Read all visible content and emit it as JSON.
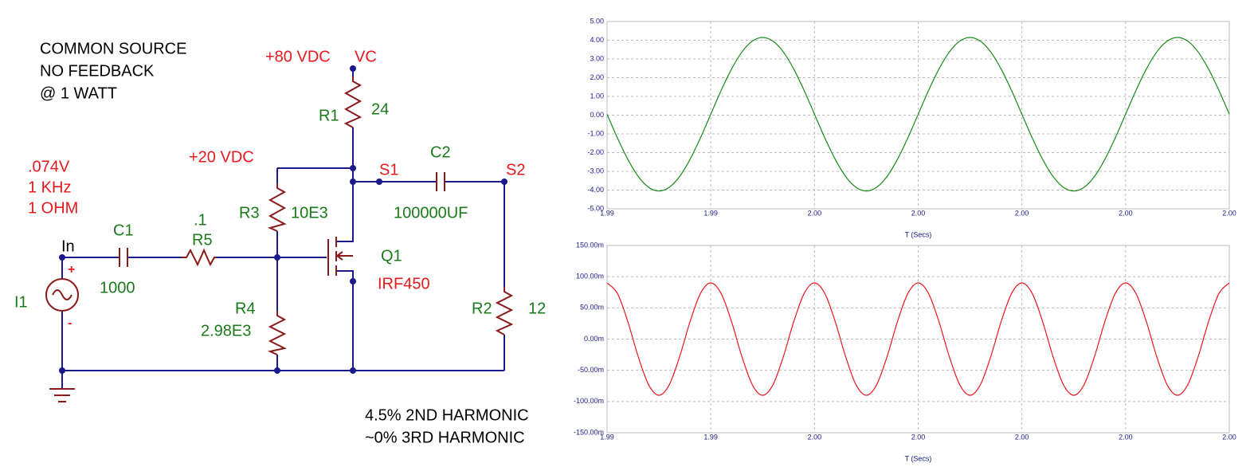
{
  "circuit": {
    "labels": [
      "COMMON SOURCE",
      "NO FEEDBACK",
      "@ 1 WATT",
      "+80 VDC",
      "VC",
      "R1",
      "24",
      "+20 VDC",
      ".074V",
      "1 KHz",
      "1 OHM",
      "S1",
      "C2",
      "S2",
      "R3",
      "10E3",
      "100000UF",
      ".1",
      "C1",
      "R5",
      "In",
      "Q1",
      "1000",
      "IRF450",
      "I1",
      "R4",
      "R2",
      "12",
      "2.98E3",
      "4.5% 2ND HARMONIC",
      "~0% 3RD HARMONIC",
      "+",
      "-"
    ]
  },
  "chart_data": [
    {
      "type": "line",
      "xlabel": "T (Secs)",
      "grid": true,
      "x": [
        1.994,
        1.99405,
        1.9941,
        1.99415,
        1.9942,
        1.99425,
        1.9943,
        1.99435,
        1.9944,
        1.99445,
        1.9945,
        1.99455,
        1.9946,
        1.99465,
        1.9947,
        1.99475,
        1.9948,
        1.99485,
        1.9949,
        1.99495,
        1.995,
        1.99505,
        1.9951,
        1.99515,
        1.9952,
        1.99525,
        1.9953,
        1.99535,
        1.9954,
        1.99545,
        1.9955,
        1.99555,
        1.9956,
        1.99565,
        1.9957,
        1.99575,
        1.9958,
        1.99585,
        1.9959,
        1.99595,
        1.996,
        1.99605,
        1.9961,
        1.99615,
        1.9962,
        1.99625,
        1.9963,
        1.99635,
        1.9964,
        1.99645,
        1.9965,
        1.99655,
        1.9966,
        1.99665,
        1.9967,
        1.99675,
        1.9968,
        1.99685,
        1.9969,
        1.99695,
        1.997
      ],
      "series": [
        {
          "color": "#1a8a1a",
          "values": [
            0.05,
            -1.22,
            -2.36,
            -3.27,
            -3.85,
            -4.05,
            -3.85,
            -3.27,
            -2.36,
            -1.22,
            0.05,
            1.32,
            2.46,
            3.37,
            3.95,
            4.15,
            3.95,
            3.37,
            2.46,
            1.32,
            0.05,
            -1.22,
            -2.36,
            -3.27,
            -3.85,
            -4.05,
            -3.85,
            -3.27,
            -2.36,
            -1.22,
            0.05,
            1.32,
            2.46,
            3.37,
            3.95,
            4.15,
            3.95,
            3.37,
            2.46,
            1.32,
            0.05,
            -1.22,
            -2.36,
            -3.27,
            -3.85,
            -4.05,
            -3.85,
            -3.27,
            -2.36,
            -1.22,
            0.05,
            1.32,
            2.46,
            3.37,
            3.95,
            4.15,
            3.95,
            3.37,
            2.46,
            1.32,
            0.05
          ]
        }
      ],
      "xlim": [
        1.994,
        1.997
      ],
      "xticks": [
        {
          "value": 1.994,
          "label": "1.99"
        },
        {
          "value": 1.9945,
          "label": "1.99"
        },
        {
          "value": 1.995,
          "label": "2.00"
        },
        {
          "value": 1.9955,
          "label": "2.00"
        },
        {
          "value": 1.996,
          "label": "2.00"
        },
        {
          "value": 1.9965,
          "label": "2.00"
        },
        {
          "value": 1.997,
          "label": "2.00"
        }
      ],
      "ylim": [
        -5,
        5
      ],
      "yticks": [
        {
          "value": -5,
          "label": "-5.00"
        },
        {
          "value": -4,
          "label": "-4.00"
        },
        {
          "value": -3,
          "label": "-3.00"
        },
        {
          "value": -2,
          "label": "-2.00"
        },
        {
          "value": -1,
          "label": "-1.00"
        },
        {
          "value": 0,
          "label": "0.00"
        },
        {
          "value": 1,
          "label": "1.00"
        },
        {
          "value": 2,
          "label": "2.00"
        },
        {
          "value": 3,
          "label": "3.00"
        },
        {
          "value": 4,
          "label": "4.00"
        },
        {
          "value": 5,
          "label": "5.00"
        }
      ]
    },
    {
      "type": "line",
      "xlabel": "T (Secs)",
      "grid": true,
      "x": [
        1.994,
        1.99405,
        1.9941,
        1.99415,
        1.9942,
        1.99425,
        1.9943,
        1.99435,
        1.9944,
        1.99445,
        1.9945,
        1.99455,
        1.9946,
        1.99465,
        1.9947,
        1.99475,
        1.9948,
        1.99485,
        1.9949,
        1.99495,
        1.995,
        1.99505,
        1.9951,
        1.99515,
        1.9952,
        1.99525,
        1.9953,
        1.99535,
        1.9954,
        1.99545,
        1.9955,
        1.99555,
        1.9956,
        1.99565,
        1.9957,
        1.99575,
        1.9958,
        1.99585,
        1.9959,
        1.99595,
        1.996,
        1.99605,
        1.9961,
        1.99615,
        1.9962,
        1.99625,
        1.9963,
        1.99635,
        1.9964,
        1.99645,
        1.9965,
        1.99655,
        1.9966,
        1.99665,
        1.9967,
        1.99675,
        1.9968,
        1.99685,
        1.9969,
        1.99695,
        1.997
      ],
      "series": [
        {
          "color": "#e8191e",
          "values": [
            0.09,
            0.073,
            0.028,
            -0.028,
            -0.073,
            -0.09,
            -0.073,
            -0.028,
            0.028,
            0.073,
            0.09,
            0.073,
            0.028,
            -0.028,
            -0.073,
            -0.09,
            -0.073,
            -0.028,
            0.028,
            0.073,
            0.09,
            0.073,
            0.028,
            -0.028,
            -0.073,
            -0.09,
            -0.073,
            -0.028,
            0.028,
            0.073,
            0.09,
            0.073,
            0.028,
            -0.028,
            -0.073,
            -0.09,
            -0.073,
            -0.028,
            0.028,
            0.073,
            0.09,
            0.073,
            0.028,
            -0.028,
            -0.073,
            -0.09,
            -0.073,
            -0.028,
            0.028,
            0.073,
            0.09,
            0.073,
            0.028,
            -0.028,
            -0.073,
            -0.09,
            -0.073,
            -0.028,
            0.028,
            0.073,
            0.09
          ]
        }
      ],
      "xlim": [
        1.994,
        1.997
      ],
      "xticks": [
        {
          "value": 1.994,
          "label": "1.99"
        },
        {
          "value": 1.9945,
          "label": "1.99"
        },
        {
          "value": 1.995,
          "label": "2.00"
        },
        {
          "value": 1.9955,
          "label": "2.00"
        },
        {
          "value": 1.996,
          "label": "2.00"
        },
        {
          "value": 1.9965,
          "label": "2.00"
        },
        {
          "value": 1.997,
          "label": "2.00"
        }
      ],
      "ylim": [
        -0.15,
        0.15
      ],
      "yticks": [
        {
          "value": -0.15,
          "label": "-150.00m"
        },
        {
          "value": -0.1,
          "label": "-100.00m"
        },
        {
          "value": -0.05,
          "label": "-50.00m"
        },
        {
          "value": 0,
          "label": "0.00m"
        },
        {
          "value": 0.05,
          "label": "50.00m"
        },
        {
          "value": 0.1,
          "label": "100.00m"
        },
        {
          "value": 0.15,
          "label": "150.00m"
        }
      ]
    }
  ]
}
